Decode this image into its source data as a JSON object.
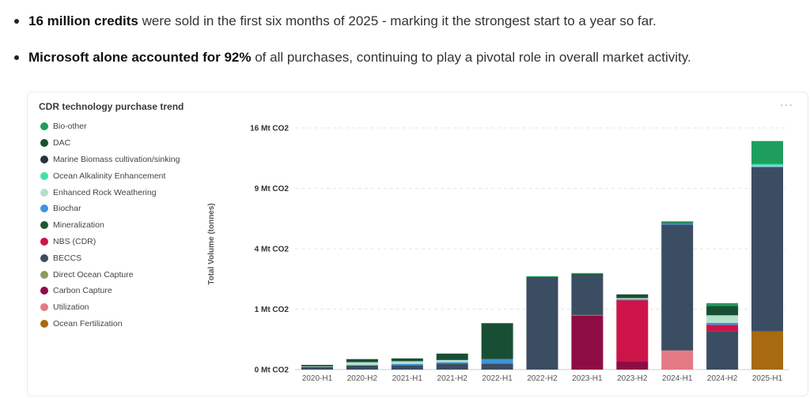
{
  "bullets": [
    {
      "bold": "16 million credits",
      "text": " were sold in the first six months of 2025 - marking it the strongest start to a year so far."
    },
    {
      "bold": "Microsoft alone accounted for 92%",
      "text": " of all purchases, continuing to play a pivotal role in overall market activity."
    }
  ],
  "card": {
    "more_icon": "more-horizontal-icon",
    "more_label": "···"
  },
  "colors": {
    "Bio-other": "#1e9e5c",
    "DAC": "#184f34",
    "Marine Biomass cultivation/sinking": "#2a3440",
    "Ocean Alkalinity Enhancement": "#44e0a8",
    "Enhanced Rock Weathering": "#b4e0cc",
    "Biochar": "#3f94dc",
    "Mineralization": "#1c5a36",
    "NBS (CDR)": "#cc1448",
    "BECCS": "#3a4d62",
    "Direct Ocean Capture": "#8c9a5a",
    "Carbon Capture": "#8e0c44",
    "Utilization": "#e47a84",
    "Ocean Fertilization": "#a86a10"
  },
  "chart_data": {
    "type": "bar",
    "stacked": true,
    "title": "CDR technology purchase trend",
    "xlabel": "",
    "ylabel": "Total Volume (tonnes)",
    "y_scale": "nonlinear (sqrt-like)",
    "y_ticks": [
      {
        "value": 0,
        "label": "0 Mt CO2"
      },
      {
        "value": 1,
        "label": "1 Mt CO2"
      },
      {
        "value": 4,
        "label": "4 Mt CO2"
      },
      {
        "value": 9,
        "label": "9 Mt CO2"
      },
      {
        "value": 16,
        "label": "16 Mt CO2"
      }
    ],
    "categories": [
      "2020-H1",
      "2020-H2",
      "2021-H1",
      "2021-H2",
      "2022-H1",
      "2022-H2",
      "2023-H1",
      "2023-H2",
      "2024-H1",
      "2024-H2",
      "2025-H1"
    ],
    "legend": [
      "Bio-other",
      "DAC",
      "Marine Biomass cultivation/sinking",
      "Ocean Alkalinity Enhancement",
      "Enhanced Rock Weathering",
      "Biochar",
      "Mineralization",
      "NBS (CDR)",
      "BECCS",
      "Direct Ocean Capture",
      "Carbon Capture",
      "Utilization",
      "Ocean Fertilization"
    ],
    "series": [
      {
        "name": "Ocean Fertilization",
        "values": [
          0,
          0,
          0,
          0,
          0,
          0,
          0,
          0,
          0,
          0,
          0.4
        ]
      },
      {
        "name": "Utilization",
        "values": [
          0,
          0,
          0,
          0,
          0,
          0,
          0,
          0,
          0.1,
          0,
          0
        ]
      },
      {
        "name": "Carbon Capture",
        "values": [
          0,
          0,
          0,
          0,
          0,
          0,
          0.8,
          0.02,
          0,
          0,
          0
        ]
      },
      {
        "name": "Direct Ocean Capture",
        "values": [
          0,
          0,
          0,
          0,
          0,
          0,
          0.02,
          0,
          0,
          0,
          0
        ]
      },
      {
        "name": "BECCS",
        "values": [
          0.002,
          0.005,
          0.005,
          0.01,
          0.01,
          2.3,
          1.62,
          0,
          5.67,
          0.4,
          10.8
        ]
      },
      {
        "name": "NBS (CDR)",
        "values": [
          0,
          0,
          0,
          0,
          0,
          0,
          0,
          1.3,
          0,
          0.15,
          0
        ]
      },
      {
        "name": "Mineralization",
        "values": [
          0,
          0,
          0,
          0,
          0,
          0,
          0,
          0,
          0,
          0,
          0
        ]
      },
      {
        "name": "Biochar",
        "values": [
          0,
          0,
          0.004,
          0.005,
          0.02,
          0,
          0,
          0.03,
          0.1,
          0.05,
          0.1
        ]
      },
      {
        "name": "Enhanced Rock Weathering",
        "values": [
          0.001,
          0.01,
          0.01,
          0.01,
          0,
          0,
          0,
          0.05,
          0,
          0.2,
          0.1
        ]
      },
      {
        "name": "Ocean Alkalinity Enhancement",
        "values": [
          0,
          0,
          0,
          0,
          0,
          0,
          0,
          0,
          0,
          0.01,
          0.2
        ]
      },
      {
        "name": "Marine Biomass cultivation/sinking",
        "values": [
          0,
          0,
          0,
          0,
          0,
          0,
          0,
          0,
          0,
          0,
          0
        ]
      },
      {
        "name": "DAC",
        "values": [
          0.003,
          0.015,
          0.015,
          0.045,
          0.56,
          0.03,
          0.05,
          0.15,
          0.05,
          0.3,
          0.01
        ]
      },
      {
        "name": "Bio-other",
        "values": [
          0,
          0,
          0,
          0,
          0,
          0.02,
          0.05,
          0,
          0.1,
          0.1,
          2.7
        ]
      }
    ]
  }
}
